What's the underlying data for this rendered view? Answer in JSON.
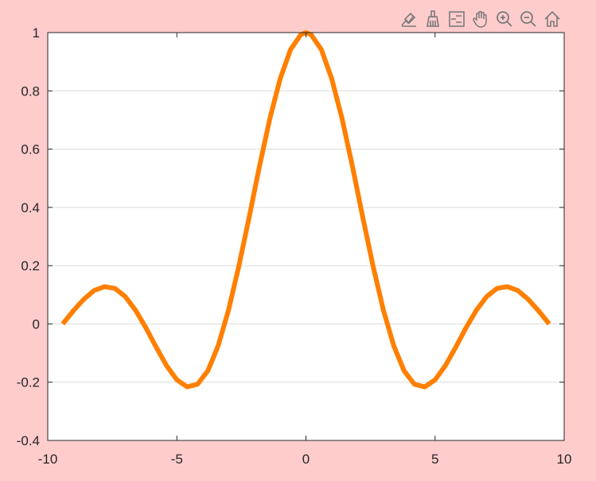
{
  "toolbar": {
    "tools": [
      {
        "name": "data-tips-icon"
      },
      {
        "name": "brush-icon"
      },
      {
        "name": "legend-icon"
      },
      {
        "name": "pan-hand-icon"
      },
      {
        "name": "zoom-in-icon"
      },
      {
        "name": "zoom-out-icon"
      },
      {
        "name": "home-icon"
      }
    ],
    "icon_color": "#7a7a7a"
  },
  "colors": {
    "figure_background": "#ffcccc",
    "axes_background": "#ffffff",
    "line": "#ff7f00",
    "grid": "#dcdcdc",
    "axis": "#262626"
  },
  "chart_data": {
    "type": "line",
    "title": "",
    "xlabel": "",
    "ylabel": "",
    "xlim": [
      -10,
      10
    ],
    "ylim": [
      -0.4,
      1
    ],
    "xticks": [
      -10,
      -5,
      0,
      5,
      10
    ],
    "xtick_labels": [
      "-10",
      "-5",
      "0",
      "5",
      "10"
    ],
    "yticks": [
      -0.4,
      -0.2,
      0,
      0.2,
      0.4,
      0.6,
      0.8,
      1
    ],
    "ytick_labels": [
      "-0.4",
      "-0.2",
      "0",
      "0.2",
      "0.4",
      "0.6",
      "0.8",
      "1"
    ],
    "grid": {
      "x": false,
      "y": true
    },
    "series": [
      {
        "color": "#ff7f00",
        "x": [
          -9.42,
          -9.0,
          -8.6,
          -8.2,
          -7.8,
          -7.4,
          -7.0,
          -6.6,
          -6.2,
          -5.8,
          -5.4,
          -5.0,
          -4.6,
          -4.2,
          -3.8,
          -3.4,
          -3.0,
          -2.6,
          -2.2,
          -1.8,
          -1.4,
          -1.0,
          -0.6,
          -0.2,
          0.0,
          0.2,
          0.6,
          1.0,
          1.4,
          1.8,
          2.2,
          2.6,
          3.0,
          3.4,
          3.8,
          4.2,
          4.6,
          5.0,
          5.4,
          5.8,
          6.2,
          6.6,
          7.0,
          7.4,
          7.8,
          8.2,
          8.6,
          9.0,
          9.42
        ],
        "y": [
          0.0,
          0.046,
          0.085,
          0.115,
          0.128,
          0.122,
          0.094,
          0.047,
          -0.013,
          -0.08,
          -0.143,
          -0.192,
          -0.216,
          -0.207,
          -0.161,
          -0.075,
          0.047,
          0.198,
          0.366,
          0.541,
          0.704,
          0.841,
          0.941,
          0.993,
          1.0,
          0.993,
          0.941,
          0.841,
          0.704,
          0.541,
          0.366,
          0.198,
          0.047,
          -0.075,
          -0.161,
          -0.207,
          -0.216,
          -0.192,
          -0.143,
          -0.08,
          -0.013,
          0.047,
          0.094,
          0.122,
          0.128,
          0.115,
          0.085,
          0.046,
          0.0
        ]
      }
    ]
  }
}
